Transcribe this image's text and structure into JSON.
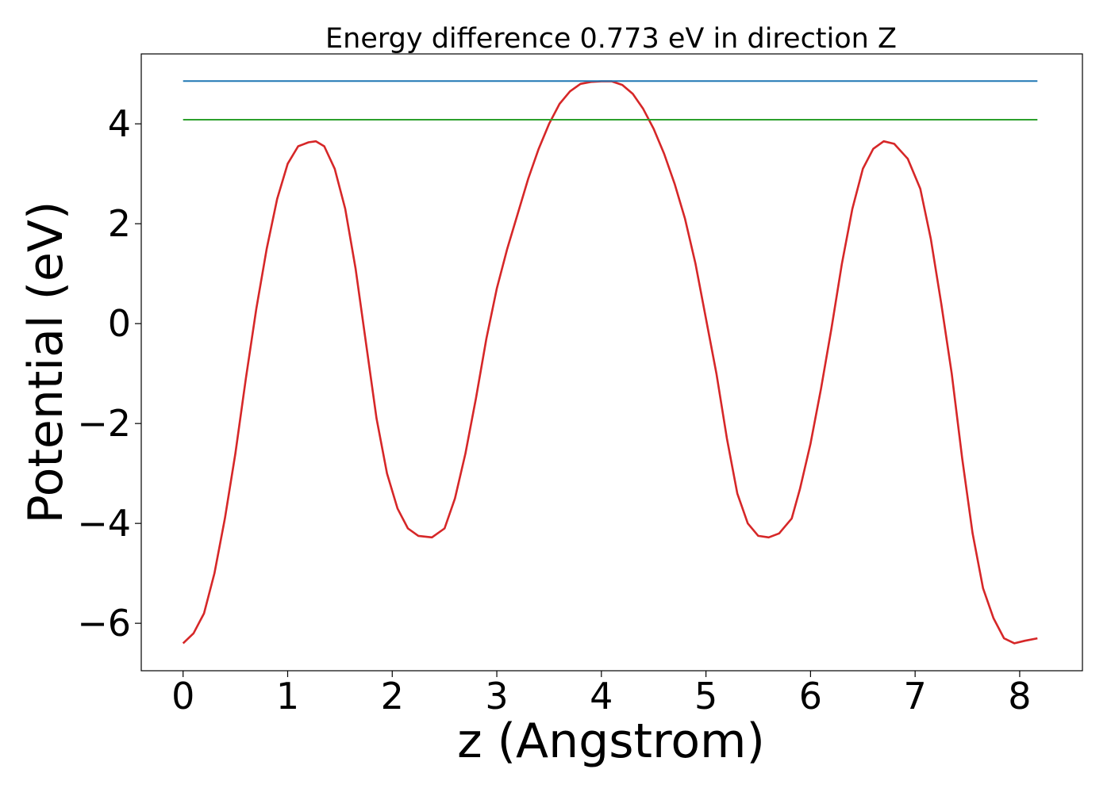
{
  "chart_data": {
    "type": "line",
    "title": "Energy difference 0.773 eV in direction Z",
    "xlabel": "z (Angstrom)",
    "ylabel": "Potential (eV)",
    "xlim": [
      -0.4,
      8.6
    ],
    "ylim": [
      -6.95,
      5.4
    ],
    "xticks": [
      0,
      1,
      2,
      3,
      4,
      5,
      6,
      7,
      8
    ],
    "xtick_labels": [
      "0",
      "1",
      "2",
      "3",
      "4",
      "5",
      "6",
      "7",
      "8"
    ],
    "yticks": [
      -6,
      -4,
      -2,
      0,
      2,
      4
    ],
    "ytick_labels": [
      "−6",
      "−4",
      "−2",
      "0",
      "2",
      "4"
    ],
    "grid": false,
    "legend": "none",
    "series": [
      {
        "color": "#d62728",
        "x": [
          0.0,
          0.1,
          0.2,
          0.3,
          0.4,
          0.5,
          0.6,
          0.7,
          0.8,
          0.9,
          1.0,
          1.1,
          1.2,
          1.27,
          1.35,
          1.45,
          1.55,
          1.65,
          1.75,
          1.85,
          1.95,
          2.05,
          2.15,
          2.25,
          2.38,
          2.5,
          2.6,
          2.7,
          2.8,
          2.9,
          3.0,
          3.1,
          3.2,
          3.3,
          3.4,
          3.5,
          3.6,
          3.7,
          3.8,
          3.9,
          4.0,
          4.1,
          4.2,
          4.3,
          4.4,
          4.5,
          4.6,
          4.7,
          4.8,
          4.9,
          5.0,
          5.1,
          5.2,
          5.3,
          5.4,
          5.5,
          5.6,
          5.7,
          5.82,
          5.9,
          6.0,
          6.1,
          6.2,
          6.3,
          6.4,
          6.5,
          6.6,
          6.7,
          6.8,
          6.93,
          7.05,
          7.15,
          7.25,
          7.35,
          7.45,
          7.55,
          7.65,
          7.75,
          7.85,
          7.95,
          8.05,
          8.17
        ],
        "y": [
          -6.4,
          -6.2,
          -5.8,
          -5.0,
          -3.9,
          -2.6,
          -1.1,
          0.3,
          1.5,
          2.5,
          3.2,
          3.55,
          3.63,
          3.65,
          3.55,
          3.1,
          2.3,
          1.1,
          -0.4,
          -1.9,
          -3.0,
          -3.7,
          -4.1,
          -4.25,
          -4.28,
          -4.1,
          -3.5,
          -2.6,
          -1.5,
          -0.3,
          0.7,
          1.5,
          2.2,
          2.9,
          3.5,
          4.0,
          4.4,
          4.65,
          4.8,
          4.84,
          4.85,
          4.85,
          4.78,
          4.6,
          4.3,
          3.9,
          3.4,
          2.8,
          2.1,
          1.2,
          0.1,
          -1.0,
          -2.3,
          -3.4,
          -4.0,
          -4.25,
          -4.28,
          -4.2,
          -3.9,
          -3.3,
          -2.4,
          -1.3,
          -0.1,
          1.2,
          2.3,
          3.1,
          3.5,
          3.65,
          3.6,
          3.3,
          2.7,
          1.7,
          0.4,
          -1.0,
          -2.7,
          -4.2,
          -5.3,
          -5.9,
          -6.3,
          -6.4,
          -6.35,
          -6.3
        ]
      },
      {
        "color": "#1f77b4",
        "x": [
          0.0,
          8.17
        ],
        "y": [
          4.855,
          4.855
        ]
      },
      {
        "color": "#2ca02c",
        "x": [
          0.0,
          8.17
        ],
        "y": [
          4.082,
          4.082
        ]
      }
    ]
  }
}
